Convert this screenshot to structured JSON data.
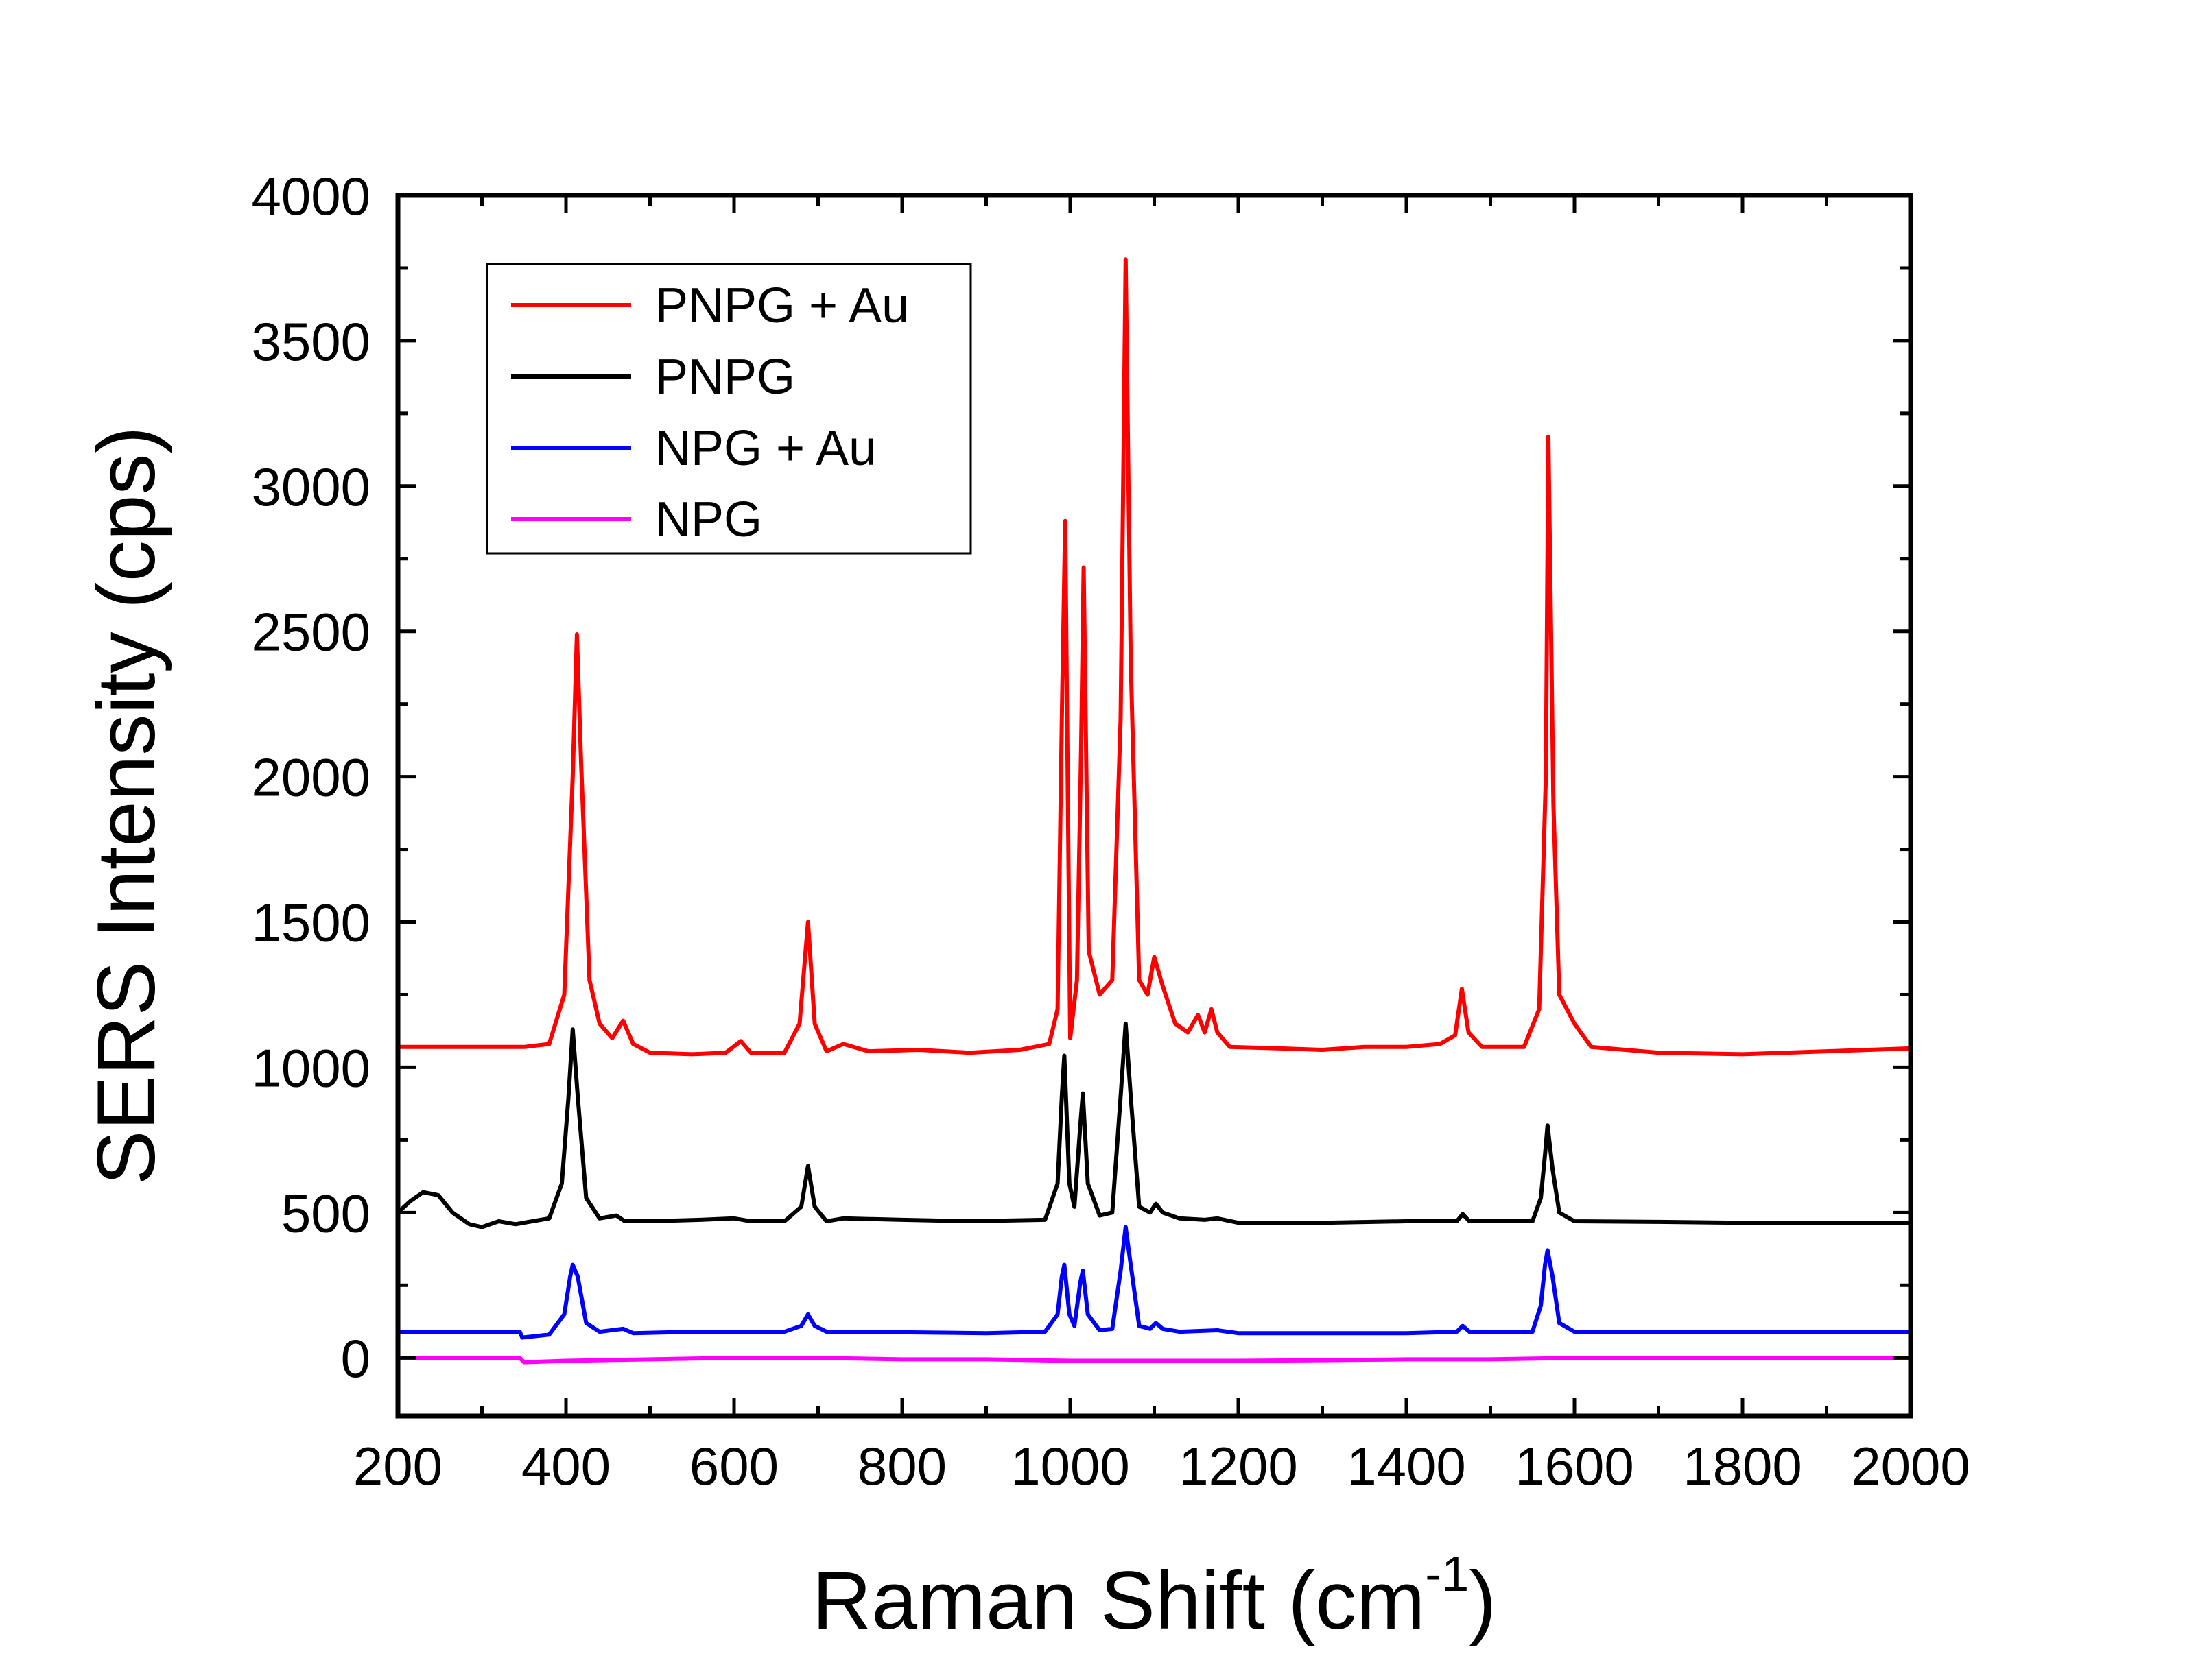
{
  "chart_data": {
    "type": "line",
    "xlabel": "Raman Shift (cm",
    "xlabel_superscript": "-1",
    "xlabel_suffix": ")",
    "ylabel": "SERS Intensity (cps)",
    "xlim": [
      200,
      2000
    ],
    "ylim": [
      -200,
      4000
    ],
    "xticks": [
      200,
      400,
      600,
      800,
      1000,
      1200,
      1400,
      1600,
      1800,
      2000
    ],
    "yticks": [
      0,
      500,
      1000,
      1500,
      2000,
      2500,
      3000,
      3500,
      4000
    ],
    "grid": false,
    "legend_position": "top-left",
    "series": [
      {
        "name": "PNPG + Au",
        "color": "#ff0000",
        "points": [
          [
            200,
            1070
          ],
          [
            350,
            1070
          ],
          [
            380,
            1080
          ],
          [
            398,
            1250
          ],
          [
            408,
            2000
          ],
          [
            413,
            2490
          ],
          [
            418,
            2050
          ],
          [
            428,
            1300
          ],
          [
            440,
            1150
          ],
          [
            455,
            1100
          ],
          [
            468,
            1160
          ],
          [
            480,
            1080
          ],
          [
            500,
            1050
          ],
          [
            550,
            1045
          ],
          [
            590,
            1050
          ],
          [
            608,
            1090
          ],
          [
            620,
            1050
          ],
          [
            660,
            1050
          ],
          [
            678,
            1150
          ],
          [
            688,
            1500
          ],
          [
            696,
            1150
          ],
          [
            710,
            1055
          ],
          [
            730,
            1080
          ],
          [
            760,
            1055
          ],
          [
            820,
            1060
          ],
          [
            880,
            1050
          ],
          [
            940,
            1060
          ],
          [
            975,
            1080
          ],
          [
            985,
            1200
          ],
          [
            990,
            2200
          ],
          [
            994,
            2880
          ],
          [
            1000,
            1100
          ],
          [
            1008,
            1300
          ],
          [
            1013,
            2100
          ],
          [
            1016,
            2720
          ],
          [
            1022,
            1400
          ],
          [
            1035,
            1250
          ],
          [
            1050,
            1300
          ],
          [
            1060,
            2200
          ],
          [
            1066,
            3780
          ],
          [
            1072,
            2400
          ],
          [
            1082,
            1300
          ],
          [
            1092,
            1250
          ],
          [
            1100,
            1380
          ],
          [
            1110,
            1280
          ],
          [
            1125,
            1150
          ],
          [
            1140,
            1120
          ],
          [
            1152,
            1180
          ],
          [
            1160,
            1120
          ],
          [
            1168,
            1200
          ],
          [
            1175,
            1120
          ],
          [
            1190,
            1070
          ],
          [
            1250,
            1065
          ],
          [
            1300,
            1060
          ],
          [
            1350,
            1070
          ],
          [
            1400,
            1070
          ],
          [
            1440,
            1080
          ],
          [
            1458,
            1110
          ],
          [
            1466,
            1270
          ],
          [
            1474,
            1120
          ],
          [
            1490,
            1070
          ],
          [
            1540,
            1070
          ],
          [
            1558,
            1200
          ],
          [
            1566,
            2000
          ],
          [
            1569,
            3170
          ],
          [
            1575,
            1900
          ],
          [
            1582,
            1250
          ],
          [
            1600,
            1150
          ],
          [
            1620,
            1070
          ],
          [
            1700,
            1050
          ],
          [
            1800,
            1045
          ],
          [
            1900,
            1055
          ],
          [
            2000,
            1065
          ]
        ]
      },
      {
        "name": "PNPG",
        "color": "#000000",
        "points": [
          [
            200,
            500
          ],
          [
            215,
            540
          ],
          [
            230,
            570
          ],
          [
            248,
            560
          ],
          [
            265,
            500
          ],
          [
            285,
            460
          ],
          [
            300,
            450
          ],
          [
            320,
            470
          ],
          [
            340,
            460
          ],
          [
            360,
            470
          ],
          [
            380,
            480
          ],
          [
            395,
            600
          ],
          [
            403,
            900
          ],
          [
            408,
            1130
          ],
          [
            414,
            900
          ],
          [
            424,
            550
          ],
          [
            440,
            480
          ],
          [
            460,
            490
          ],
          [
            470,
            470
          ],
          [
            500,
            470
          ],
          [
            560,
            475
          ],
          [
            600,
            480
          ],
          [
            620,
            470
          ],
          [
            660,
            470
          ],
          [
            680,
            520
          ],
          [
            688,
            660
          ],
          [
            696,
            520
          ],
          [
            710,
            470
          ],
          [
            730,
            480
          ],
          [
            800,
            475
          ],
          [
            880,
            470
          ],
          [
            970,
            475
          ],
          [
            985,
            600
          ],
          [
            990,
            900
          ],
          [
            993,
            1040
          ],
          [
            999,
            600
          ],
          [
            1005,
            520
          ],
          [
            1012,
            800
          ],
          [
            1015,
            910
          ],
          [
            1021,
            600
          ],
          [
            1035,
            490
          ],
          [
            1050,
            500
          ],
          [
            1060,
            900
          ],
          [
            1066,
            1150
          ],
          [
            1072,
            900
          ],
          [
            1082,
            520
          ],
          [
            1095,
            500
          ],
          [
            1102,
            530
          ],
          [
            1110,
            500
          ],
          [
            1130,
            480
          ],
          [
            1160,
            475
          ],
          [
            1175,
            480
          ],
          [
            1200,
            465
          ],
          [
            1300,
            465
          ],
          [
            1400,
            470
          ],
          [
            1460,
            470
          ],
          [
            1467,
            495
          ],
          [
            1475,
            470
          ],
          [
            1550,
            470
          ],
          [
            1560,
            550
          ],
          [
            1565,
            700
          ],
          [
            1568,
            800
          ],
          [
            1574,
            650
          ],
          [
            1582,
            500
          ],
          [
            1600,
            470
          ],
          [
            1700,
            468
          ],
          [
            1800,
            465
          ],
          [
            1900,
            465
          ],
          [
            2000,
            465
          ]
        ]
      },
      {
        "name": "NPG + Au",
        "color": "#0000ff",
        "points": [
          [
            200,
            90
          ],
          [
            345,
            90
          ],
          [
            348,
            70
          ],
          [
            380,
            80
          ],
          [
            398,
            150
          ],
          [
            405,
            280
          ],
          [
            408,
            320
          ],
          [
            414,
            280
          ],
          [
            424,
            120
          ],
          [
            440,
            90
          ],
          [
            468,
            100
          ],
          [
            480,
            85
          ],
          [
            550,
            90
          ],
          [
            620,
            90
          ],
          [
            660,
            90
          ],
          [
            680,
            110
          ],
          [
            688,
            150
          ],
          [
            696,
            110
          ],
          [
            710,
            90
          ],
          [
            800,
            88
          ],
          [
            900,
            85
          ],
          [
            970,
            90
          ],
          [
            985,
            150
          ],
          [
            990,
            280
          ],
          [
            993,
            320
          ],
          [
            999,
            150
          ],
          [
            1005,
            110
          ],
          [
            1012,
            260
          ],
          [
            1015,
            300
          ],
          [
            1021,
            150
          ],
          [
            1035,
            95
          ],
          [
            1050,
            100
          ],
          [
            1060,
            300
          ],
          [
            1066,
            450
          ],
          [
            1072,
            320
          ],
          [
            1082,
            110
          ],
          [
            1095,
            100
          ],
          [
            1102,
            120
          ],
          [
            1110,
            100
          ],
          [
            1130,
            90
          ],
          [
            1175,
            95
          ],
          [
            1200,
            85
          ],
          [
            1300,
            85
          ],
          [
            1400,
            85
          ],
          [
            1460,
            90
          ],
          [
            1467,
            110
          ],
          [
            1475,
            90
          ],
          [
            1550,
            90
          ],
          [
            1560,
            180
          ],
          [
            1565,
            320
          ],
          [
            1568,
            370
          ],
          [
            1574,
            280
          ],
          [
            1582,
            120
          ],
          [
            1600,
            90
          ],
          [
            1700,
            90
          ],
          [
            1800,
            88
          ],
          [
            1900,
            88
          ],
          [
            2000,
            90
          ]
        ]
      },
      {
        "name": "NPG",
        "color": "#ff00ff",
        "points": [
          [
            200,
            0
          ],
          [
            345,
            0
          ],
          [
            350,
            -15
          ],
          [
            400,
            -10
          ],
          [
            500,
            -5
          ],
          [
            600,
            0
          ],
          [
            700,
            0
          ],
          [
            800,
            -5
          ],
          [
            900,
            -5
          ],
          [
            1000,
            -10
          ],
          [
            1100,
            -10
          ],
          [
            1200,
            -10
          ],
          [
            1300,
            -8
          ],
          [
            1400,
            -5
          ],
          [
            1500,
            -5
          ],
          [
            1600,
            0
          ],
          [
            1700,
            0
          ],
          [
            1800,
            0
          ],
          [
            1900,
            0
          ],
          [
            2000,
            0
          ]
        ]
      }
    ]
  }
}
